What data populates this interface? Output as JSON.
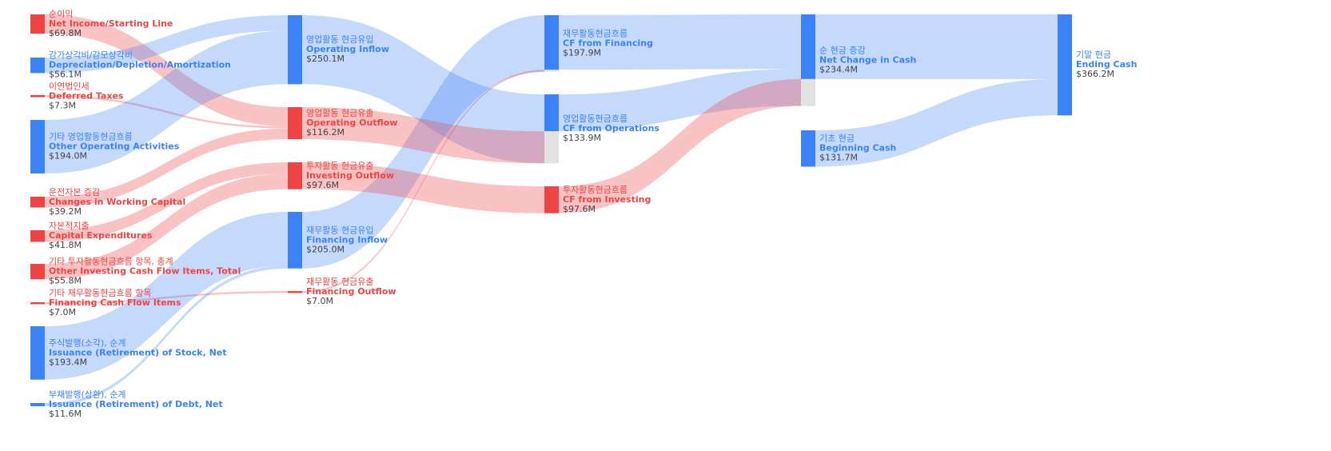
{
  "chart_data": {
    "type": "sankey",
    "nodes": [
      {
        "label_ko": "순이익",
        "label_en": "Net Income/Starting Line",
        "value": 69.8,
        "value_label": "$69.8M",
        "color": "#ef4444"
      },
      {
        "label_ko": "감가상각비/감모상각비",
        "label_en": "Depreciation/Depletion/Amortization",
        "value": 56.1,
        "value_label": "$56.1M",
        "color": "#3b82f6"
      },
      {
        "label_ko": "이연법인세",
        "label_en": "Deferred Taxes",
        "value": 7.3,
        "value_label": "$7.3M",
        "color": "#ef4444"
      },
      {
        "label_ko": "기타 영업활동현금흐름",
        "label_en": "Other Operating Activities",
        "value": 194.0,
        "value_label": "$194.0M",
        "color": "#3b82f6"
      },
      {
        "label_ko": "운전자본 증감",
        "label_en": "Changes in Working Capital",
        "value": 39.2,
        "value_label": "$39.2M",
        "color": "#ef4444"
      },
      {
        "label_ko": "자본적지출",
        "label_en": "Capital Expenditures",
        "value": 41.8,
        "value_label": "$41.8M",
        "color": "#ef4444"
      },
      {
        "label_ko": "기타 투자활동현금흐름 항목, 총계",
        "label_en": "Other Investing Cash Flow Items, Total",
        "value": 55.8,
        "value_label": "$55.8M",
        "color": "#ef4444"
      },
      {
        "label_ko": "기타 재무활동현금흐름 항목",
        "label_en": "Financing Cash Flow Items",
        "value": 7.0,
        "value_label": "$7.0M",
        "color": "#ef4444"
      },
      {
        "label_ko": "주식발행(소각), 순계",
        "label_en": "Issuance (Retirement) of Stock, Net",
        "value": 193.4,
        "value_label": "$193.4M",
        "color": "#3b82f6"
      },
      {
        "label_ko": "부채발행(상환), 순계",
        "label_en": "Issuance (Retirement) of Debt, Net",
        "value": 11.6,
        "value_label": "$11.6M",
        "color": "#3b82f6"
      },
      {
        "label_ko": "영업활동 현금유입",
        "label_en": "Operating Inflow",
        "value": 250.1,
        "value_label": "$250.1M",
        "color": "#3b82f6"
      },
      {
        "label_ko": "영업활동 현금유출",
        "label_en": "Operating Outflow",
        "value": 116.2,
        "value_label": "$116.2M",
        "color": "#ef4444"
      },
      {
        "label_ko": "투자활동 현금유출",
        "label_en": "Investing Outflow",
        "value": 97.6,
        "value_label": "$97.6M",
        "color": "#ef4444"
      },
      {
        "label_ko": "재무활동 현금유입",
        "label_en": "Financing Inflow",
        "value": 205.0,
        "value_label": "$205.0M",
        "color": "#3b82f6"
      },
      {
        "label_ko": "재무활동 현금유출",
        "label_en": "Financing Outflow",
        "value": 7.0,
        "value_label": "$7.0M",
        "color": "#ef4444"
      },
      {
        "label_ko": "재무활동현금흐름",
        "label_en": "CF from Financing",
        "value": 197.9,
        "value_label": "$197.9M",
        "color": "#3b82f6"
      },
      {
        "label_ko": "영업활동현금흐름",
        "label_en": "CF from Operations",
        "value": 133.9,
        "value_label": "$133.9M",
        "color": "#3b82f6"
      },
      {
        "label_ko": "투자활동현금흐름",
        "label_en": "CF from Investing",
        "value": 97.6,
        "value_label": "$97.6M",
        "color": "#ef4444"
      },
      {
        "label_ko": "순 현금 증감",
        "label_en": "Net Change in Cash",
        "value": 234.4,
        "value_label": "$234.4M",
        "color": "#3b82f6"
      },
      {
        "label_ko": "기초 현금",
        "label_en": "Beginning Cash",
        "value": 131.7,
        "value_label": "$131.7M",
        "color": "#3b82f6"
      },
      {
        "label_ko": "기말 현금",
        "label_en": "Ending Cash",
        "value": 366.2,
        "value_label": "$366.2M",
        "color": "#3b82f6"
      }
    ],
    "links": [
      {
        "source": 0,
        "target": 11,
        "value": 69.8
      },
      {
        "source": 1,
        "target": 10,
        "value": 56.1
      },
      {
        "source": 2,
        "target": 11,
        "value": 7.3
      },
      {
        "source": 3,
        "target": 10,
        "value": 194.0
      },
      {
        "source": 4,
        "target": 11,
        "value": 39.2
      },
      {
        "source": 5,
        "target": 12,
        "value": 41.8
      },
      {
        "source": 6,
        "target": 12,
        "value": 55.8
      },
      {
        "source": 7,
        "target": 14,
        "value": 7.0
      },
      {
        "source": 8,
        "target": 13,
        "value": 193.4
      },
      {
        "source": 9,
        "target": 13,
        "value": 11.6
      },
      {
        "source": 13,
        "target": 15,
        "value": 205.0
      },
      {
        "source": 14,
        "target": 15,
        "value": 7.0
      },
      {
        "source": 10,
        "target": 16,
        "value": 250.1
      },
      {
        "source": 11,
        "target": 16,
        "value": 116.2
      },
      {
        "source": 12,
        "target": 17,
        "value": 97.6
      },
      {
        "source": 15,
        "target": 18,
        "value": 197.9
      },
      {
        "source": 16,
        "target": 18,
        "value": 133.9
      },
      {
        "source": 17,
        "target": 18,
        "value": 97.6
      },
      {
        "source": 18,
        "target": 20,
        "value": 234.4
      },
      {
        "source": 19,
        "target": 20,
        "value": 131.7
      }
    ]
  }
}
